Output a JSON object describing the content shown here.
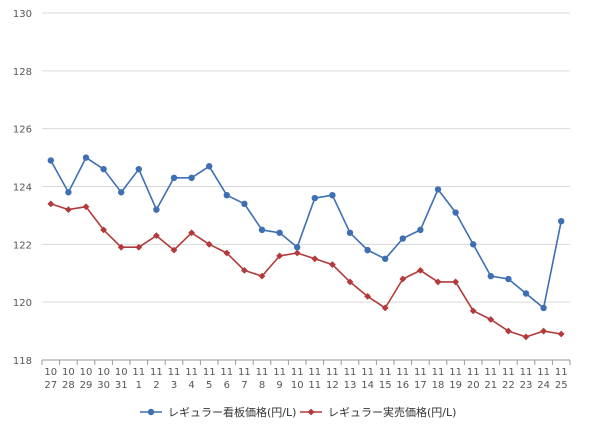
{
  "chart_data": {
    "type": "line",
    "title": "",
    "xlabel": "",
    "ylabel": "",
    "ylim": [
      118,
      130
    ],
    "yticks": [
      118,
      120,
      122,
      124,
      126,
      128,
      130
    ],
    "grid": "horizontal",
    "legend_position": "bottom",
    "categories": [
      {
        "month": "10",
        "day": "27"
      },
      {
        "month": "10",
        "day": "28"
      },
      {
        "month": "10",
        "day": "29"
      },
      {
        "month": "10",
        "day": "30"
      },
      {
        "month": "10",
        "day": "31"
      },
      {
        "month": "11",
        "day": "1"
      },
      {
        "month": "11",
        "day": "2"
      },
      {
        "month": "11",
        "day": "3"
      },
      {
        "month": "11",
        "day": "4"
      },
      {
        "month": "11",
        "day": "5"
      },
      {
        "month": "11",
        "day": "6"
      },
      {
        "month": "11",
        "day": "7"
      },
      {
        "month": "11",
        "day": "8"
      },
      {
        "month": "11",
        "day": "9"
      },
      {
        "month": "11",
        "day": "10"
      },
      {
        "month": "11",
        "day": "11"
      },
      {
        "month": "11",
        "day": "12"
      },
      {
        "month": "11",
        "day": "13"
      },
      {
        "month": "11",
        "day": "14"
      },
      {
        "month": "11",
        "day": "15"
      },
      {
        "month": "11",
        "day": "16"
      },
      {
        "month": "11",
        "day": "17"
      },
      {
        "month": "11",
        "day": "18"
      },
      {
        "month": "11",
        "day": "19"
      },
      {
        "month": "11",
        "day": "20"
      },
      {
        "month": "11",
        "day": "21"
      },
      {
        "month": "11",
        "day": "22"
      },
      {
        "month": "11",
        "day": "23"
      },
      {
        "month": "11",
        "day": "24"
      },
      {
        "month": "11",
        "day": "25"
      }
    ],
    "series": [
      {
        "name": "レギュラー看板価格(円/L)",
        "color": "#3e6fb2",
        "marker": "circle",
        "values": [
          124.9,
          123.8,
          125.0,
          124.6,
          123.8,
          124.6,
          123.2,
          124.3,
          124.3,
          124.7,
          123.7,
          123.4,
          122.5,
          122.4,
          121.9,
          123.6,
          123.7,
          122.4,
          121.8,
          121.5,
          122.2,
          122.5,
          123.9,
          123.1,
          122.0,
          120.9,
          120.8,
          120.3,
          119.8,
          122.8
        ]
      },
      {
        "name": "レギュラー実売価格(円/L)",
        "color": "#b33a3a",
        "marker": "diamond",
        "values": [
          123.4,
          123.2,
          123.3,
          122.5,
          121.9,
          121.9,
          122.3,
          121.8,
          122.4,
          122.0,
          121.7,
          121.1,
          120.9,
          121.6,
          121.7,
          121.5,
          121.3,
          120.7,
          120.2,
          119.8,
          120.8,
          121.1,
          120.7,
          120.7,
          119.7,
          119.4,
          119.0,
          118.8,
          119.0,
          118.9
        ]
      }
    ]
  }
}
